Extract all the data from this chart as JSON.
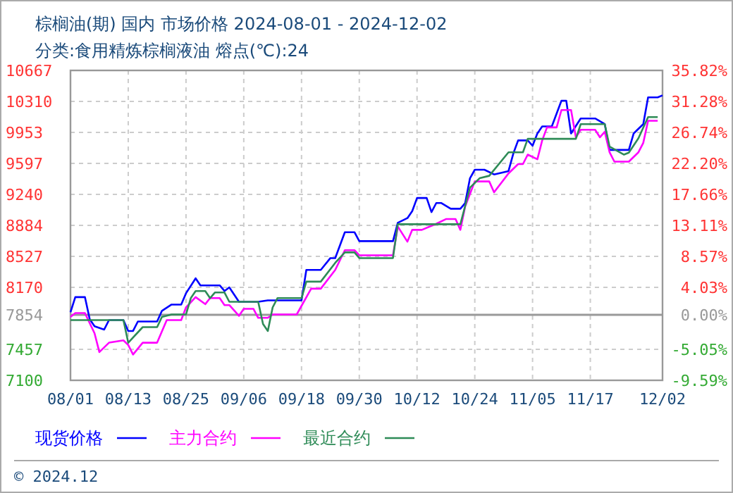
{
  "chart_data": {
    "type": "line",
    "title": "棕榈油(期) 国内 市场价格 2024-08-01 - 2024-12-02",
    "subtitle": "分类:食用精炼棕榈液油 熔点(℃):24",
    "xlim": [
      "2024-08-01",
      "2024-12-02"
    ],
    "xticks": [
      {
        "value": "2024-08-01",
        "label": "08/01"
      },
      {
        "value": "2024-08-13",
        "label": "08/13"
      },
      {
        "value": "2024-08-25",
        "label": "08/25"
      },
      {
        "value": "2024-09-06",
        "label": "09/06"
      },
      {
        "value": "2024-09-18",
        "label": "09/18"
      },
      {
        "value": "2024-09-30",
        "label": "09/30"
      },
      {
        "value": "2024-10-12",
        "label": "10/12"
      },
      {
        "value": "2024-10-24",
        "label": "10/24"
      },
      {
        "value": "2024-11-05",
        "label": "11/05"
      },
      {
        "value": "2024-11-17",
        "label": "11/17"
      },
      {
        "value": "2024-12-02",
        "label": "12/02"
      }
    ],
    "ylim": [
      7100,
      10667
    ],
    "yticks": [
      7100,
      7457,
      7854,
      8170,
      8527,
      8884,
      9240,
      9597,
      9953,
      10310,
      10667
    ],
    "y2lim": [
      -9.59,
      35.82
    ],
    "y2ticks": [
      {
        "value": -9.59,
        "label": "-9.59%"
      },
      {
        "value": -5.05,
        "label": "-5.05%"
      },
      {
        "value": 0,
        "label": "0.00%"
      },
      {
        "value": 4.03,
        "label": "4.03%"
      },
      {
        "value": 8.57,
        "label": "8.57%"
      },
      {
        "value": 13.11,
        "label": "13.11%"
      },
      {
        "value": 17.66,
        "label": "17.66%"
      },
      {
        "value": 22.2,
        "label": "22.20%"
      },
      {
        "value": 26.74,
        "label": "26.74%"
      },
      {
        "value": 31.28,
        "label": "31.28%"
      },
      {
        "value": 35.82,
        "label": "35.82%"
      }
    ],
    "ref_lines": [
      {
        "axis": "y",
        "value": 7854,
        "color": "#999999"
      }
    ],
    "grid": true,
    "legend": "bottom",
    "line_style": "solid",
    "marker": "none",
    "annotations": [
      "© 2024.12"
    ],
    "series": [
      {
        "name": "现货价格",
        "color": "#0000ff",
        "x": [
          "2024-08-01",
          "2024-08-02",
          "2024-08-04",
          "2024-08-05",
          "2024-08-06",
          "2024-08-08",
          "2024-08-09",
          "2024-08-12",
          "2024-08-13",
          "2024-08-14",
          "2024-08-15",
          "2024-08-19",
          "2024-08-20",
          "2024-08-22",
          "2024-08-24",
          "2024-08-25",
          "2024-08-27",
          "2024-08-28",
          "2024-09-01",
          "2024-09-02",
          "2024-09-03",
          "2024-09-05",
          "2024-09-09",
          "2024-09-11",
          "2024-09-18",
          "2024-09-19",
          "2024-09-22",
          "2024-09-24",
          "2024-09-25",
          "2024-09-27",
          "2024-09-29",
          "2024-09-30",
          "2024-10-07",
          "2024-10-08",
          "2024-10-10",
          "2024-10-11",
          "2024-10-12",
          "2024-10-14",
          "2024-10-15",
          "2024-10-16",
          "2024-10-17",
          "2024-10-19",
          "2024-10-21",
          "2024-10-22",
          "2024-10-23",
          "2024-10-24",
          "2024-10-26",
          "2024-10-28",
          "2024-10-31",
          "2024-11-01",
          "2024-11-02",
          "2024-11-04",
          "2024-11-05",
          "2024-11-06",
          "2024-11-07",
          "2024-11-09",
          "2024-11-11",
          "2024-11-12",
          "2024-11-13",
          "2024-11-15",
          "2024-11-18",
          "2024-11-20",
          "2024-11-21",
          "2024-11-25",
          "2024-11-26",
          "2024-11-28",
          "2024-11-29",
          "2024-12-01",
          "2024-12-02"
        ],
        "values": [
          7884,
          8058,
          8058,
          7803,
          7722,
          7684,
          7793,
          7793,
          7668,
          7668,
          7777,
          7777,
          7900,
          7972,
          7972,
          8102,
          8274,
          8193,
          8193,
          8128,
          8170,
          8004,
          8004,
          8020,
          8020,
          8371,
          8371,
          8507,
          8507,
          8805,
          8805,
          8702,
          8702,
          8913,
          8967,
          9048,
          9199,
          9199,
          9037,
          9141,
          9141,
          9075,
          9075,
          9140,
          9426,
          9524,
          9524,
          9470,
          9508,
          9710,
          9861,
          9861,
          9800,
          9941,
          10022,
          10022,
          10319,
          10319,
          9941,
          10114,
          10114,
          10049,
          9752,
          9752,
          9941,
          10049,
          10357,
          10357,
          10380
        ]
      },
      {
        "name": "主力合约",
        "color": "#ff00ff",
        "x": [
          "2024-08-01",
          "2024-08-02",
          "2024-08-04",
          "2024-08-06",
          "2024-08-07",
          "2024-08-09",
          "2024-08-12",
          "2024-08-13",
          "2024-08-14",
          "2024-08-16",
          "2024-08-19",
          "2024-08-21",
          "2024-08-24",
          "2024-08-25",
          "2024-08-27",
          "2024-08-29",
          "2024-08-30",
          "2024-09-01",
          "2024-09-02",
          "2024-09-03",
          "2024-09-05",
          "2024-09-06",
          "2024-09-08",
          "2024-09-09",
          "2024-09-11",
          "2024-09-12",
          "2024-09-17",
          "2024-09-20",
          "2024-09-22",
          "2024-09-25",
          "2024-09-27",
          "2024-09-29",
          "2024-09-30",
          "2024-10-07",
          "2024-10-08",
          "2024-10-10",
          "2024-10-11",
          "2024-10-13",
          "2024-10-16",
          "2024-10-18",
          "2024-10-20",
          "2024-10-21",
          "2024-10-22",
          "2024-10-24",
          "2024-10-27",
          "2024-10-28",
          "2024-10-31",
          "2024-11-02",
          "2024-11-03",
          "2024-11-04",
          "2024-11-06",
          "2024-11-07",
          "2024-11-08",
          "2024-11-10",
          "2024-11-11",
          "2024-11-13",
          "2024-11-14",
          "2024-11-15",
          "2024-11-18",
          "2024-11-19",
          "2024-11-20",
          "2024-11-21",
          "2024-11-22",
          "2024-11-25",
          "2024-11-27",
          "2024-11-28",
          "2024-11-29",
          "2024-12-01"
        ],
        "values": [
          7830,
          7874,
          7874,
          7641,
          7425,
          7533,
          7560,
          7506,
          7397,
          7533,
          7533,
          7793,
          7793,
          7939,
          8058,
          7977,
          8046,
          8046,
          7966,
          7966,
          7842,
          7923,
          7923,
          7819,
          7819,
          7858,
          7858,
          8155,
          8155,
          8371,
          8598,
          8598,
          8539,
          8539,
          8870,
          8696,
          8832,
          8832,
          8902,
          8956,
          8956,
          8832,
          9103,
          9389,
          9389,
          9264,
          9481,
          9589,
          9589,
          9698,
          9644,
          9861,
          10011,
          10011,
          10211,
          10211,
          9897,
          9984,
          9984,
          9897,
          9960,
          9725,
          9617,
          9617,
          9725,
          9833,
          10087,
          10087
        ]
      },
      {
        "name": "最近合约",
        "color": "#2e8b57",
        "x": [
          "2024-08-01",
          "2024-08-12",
          "2024-08-13",
          "2024-08-16",
          "2024-08-19",
          "2024-08-20",
          "2024-08-22",
          "2024-08-25",
          "2024-08-26",
          "2024-08-27",
          "2024-08-29",
          "2024-08-30",
          "2024-08-31",
          "2024-09-02",
          "2024-09-03",
          "2024-09-09",
          "2024-09-10",
          "2024-09-11",
          "2024-09-12",
          "2024-09-13",
          "2024-09-18",
          "2024-09-19",
          "2024-09-22",
          "2024-09-25",
          "2024-09-27",
          "2024-09-29",
          "2024-09-30",
          "2024-10-07",
          "2024-10-08",
          "2024-10-21",
          "2024-10-23",
          "2024-10-25",
          "2024-10-27",
          "2024-10-31",
          "2024-11-03",
          "2024-11-04",
          "2024-11-14",
          "2024-11-15",
          "2024-11-20",
          "2024-11-21",
          "2024-11-24",
          "2024-11-25",
          "2024-11-27",
          "2024-11-29",
          "2024-12-01"
        ],
        "values": [
          7793,
          7793,
          7533,
          7712,
          7712,
          7830,
          7858,
          7858,
          8046,
          8128,
          8128,
          8046,
          8111,
          8111,
          8004,
          8004,
          7749,
          7668,
          7939,
          8046,
          8046,
          8236,
          8236,
          8452,
          8572,
          8572,
          8507,
          8507,
          8897,
          8897,
          9318,
          9426,
          9454,
          9725,
          9725,
          9880,
          9880,
          10049,
          10049,
          9790,
          9698,
          9720,
          9887,
          10130,
          10130
        ]
      }
    ]
  }
}
